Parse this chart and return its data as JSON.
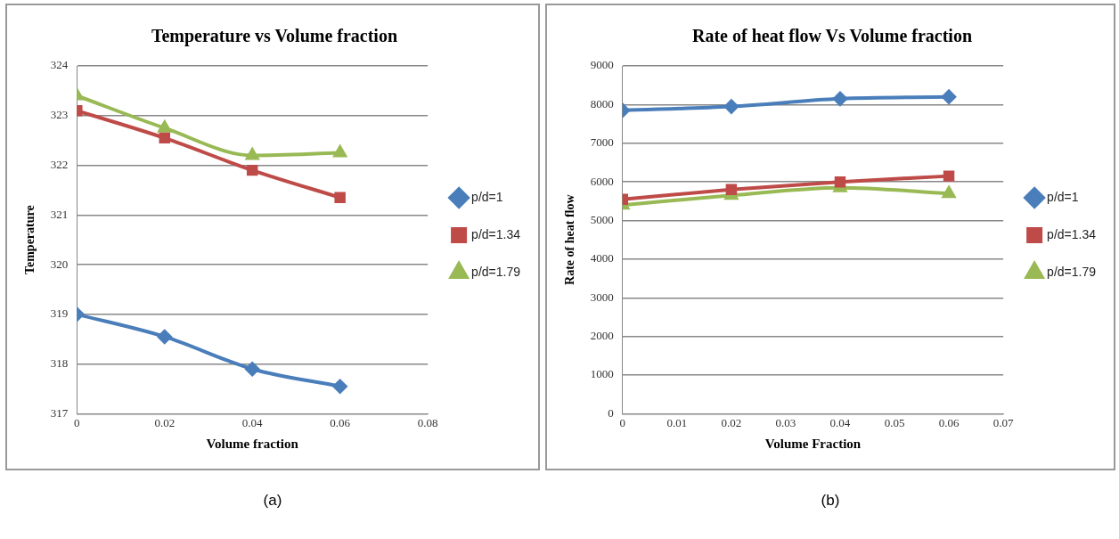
{
  "chart_data": [
    {
      "type": "line",
      "title": "Temperature vs Volume fraction",
      "xlabel": "Volume fraction",
      "ylabel": "Temperature",
      "x": [
        0,
        0.02,
        0.04,
        0.06
      ],
      "series": [
        {
          "name": "p/d=1",
          "color": "#4a7ebb",
          "marker": "diamond",
          "values": [
            319,
            318.55,
            317.9,
            317.55
          ]
        },
        {
          "name": "p/d=1.34",
          "color": "#be4b48",
          "marker": "square",
          "values": [
            323.1,
            322.55,
            321.9,
            321.35
          ]
        },
        {
          "name": "p/d=1.79",
          "color": "#98b954",
          "marker": "triangle",
          "values": [
            323.4,
            322.75,
            322.2,
            322.25
          ]
        }
      ],
      "xlim": [
        0,
        0.08
      ],
      "xticks": [
        0,
        0.02,
        0.04,
        0.06,
        0.08
      ],
      "ylim": [
        317,
        324
      ],
      "yticks": [
        317,
        318,
        319,
        320,
        321,
        322,
        323,
        324
      ],
      "grid": "y",
      "legend": "right",
      "annotations": [
        "(a)"
      ]
    },
    {
      "type": "line",
      "title": "Rate of heat flow Vs Volume fraction",
      "xlabel": "Volume Fraction",
      "ylabel": "Rate of heat flow",
      "x": [
        0,
        0.02,
        0.04,
        0.06
      ],
      "series": [
        {
          "name": "p/d=1",
          "color": "#4a7ebb",
          "marker": "diamond",
          "values": [
            7850,
            7950,
            8150,
            8200
          ]
        },
        {
          "name": "p/d=1.34",
          "color": "#be4b48",
          "marker": "square",
          "values": [
            5550,
            5800,
            6000,
            6150
          ]
        },
        {
          "name": "p/d=1.79",
          "color": "#98b954",
          "marker": "triangle",
          "values": [
            5400,
            5650,
            5850,
            5700
          ]
        }
      ],
      "xlim": [
        0,
        0.07
      ],
      "xticks": [
        0,
        0.01,
        0.02,
        0.03,
        0.04,
        0.05,
        0.06,
        0.07
      ],
      "ylim": [
        0,
        9000
      ],
      "yticks": [
        0,
        1000,
        2000,
        3000,
        4000,
        5000,
        6000,
        7000,
        8000,
        9000
      ],
      "grid": "y",
      "legend": "right",
      "annotations": [
        "(b)"
      ]
    }
  ]
}
